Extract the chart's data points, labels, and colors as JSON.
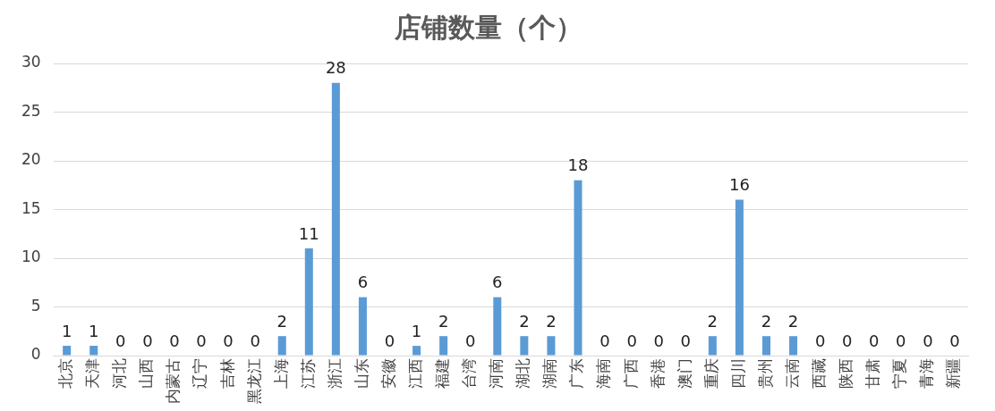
{
  "chart_data": {
    "type": "bar",
    "title": "店铺数量（个）",
    "categories": [
      "北京",
      "天津",
      "河北",
      "山西",
      "内蒙古",
      "辽宁",
      "吉林",
      "黑龙江",
      "上海",
      "江苏",
      "浙江",
      "山东",
      "安徽",
      "江西",
      "福建",
      "台湾",
      "河南",
      "湖北",
      "湖南",
      "广东",
      "海南",
      "广西",
      "香港",
      "澳门",
      "重庆",
      "四川",
      "贵州",
      "云南",
      "西藏",
      "陕西",
      "甘肃",
      "宁夏",
      "青海",
      "新疆"
    ],
    "values": [
      1,
      1,
      0,
      0,
      0,
      0,
      0,
      0,
      2,
      11,
      28,
      6,
      0,
      1,
      2,
      0,
      6,
      2,
      2,
      18,
      0,
      0,
      0,
      0,
      2,
      16,
      2,
      2,
      0,
      0,
      0,
      0,
      0,
      0
    ],
    "color": "#5b9bd5",
    "ylim": [
      0,
      30
    ],
    "yticks": [
      0,
      5,
      10,
      15,
      20,
      25,
      30
    ],
    "grid": "y",
    "data_labels": true,
    "legend": false
  }
}
